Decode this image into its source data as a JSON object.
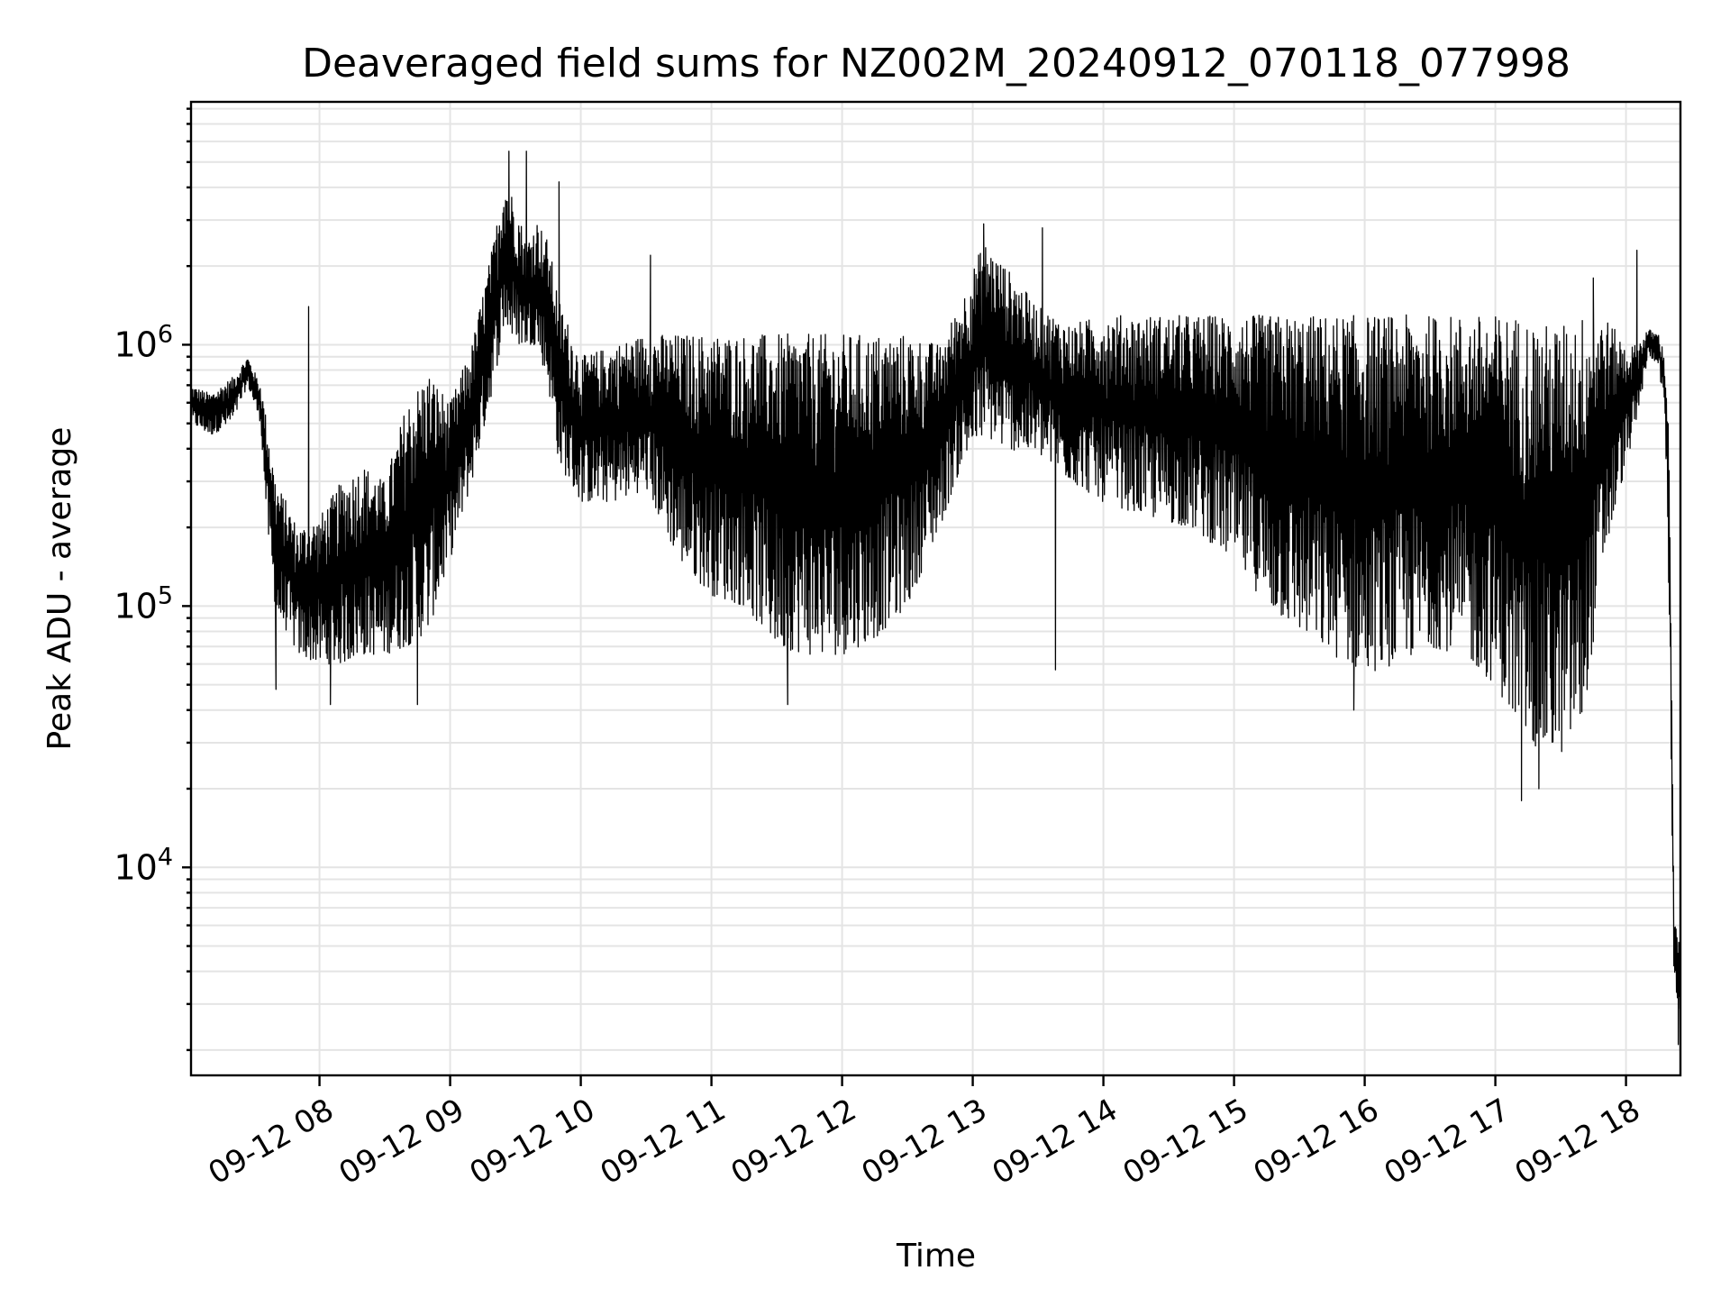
{
  "chart_data": {
    "type": "line",
    "title": "Deaveraged field sums for NZ002M_20240912_070118_077998",
    "xlabel": "Time",
    "ylabel": "Peak ADU - average",
    "yscale": "log",
    "ylim": [
      1600,
      8500000
    ],
    "xlim": [
      "2024-09-12 07:01",
      "2024-09-12 18:25"
    ],
    "grid": true,
    "legend": "none",
    "line_color": "#000000",
    "x_ticks": [
      "09-12 08",
      "09-12 09",
      "09-12 10",
      "09-12 11",
      "09-12 12",
      "09-12 13",
      "09-12 14",
      "09-12 15",
      "09-12 16",
      "09-12 17",
      "09-12 18"
    ],
    "y_ticks": [
      {
        "base": "10",
        "exp": "4",
        "value": 10000
      },
      {
        "base": "10",
        "exp": "5",
        "value": 100000
      },
      {
        "base": "10",
        "exp": "6",
        "value": 1000000
      }
    ],
    "series": [
      {
        "x": [
          "2024-09-12 07:01",
          "2024-09-12 07:10",
          "2024-09-12 07:20",
          "2024-09-12 07:27",
          "2024-09-12 07:33",
          "2024-09-12 07:36",
          "2024-09-12 07:40",
          "2024-09-12 07:45",
          "2024-09-12 07:50",
          "2024-09-12 08:00",
          "2024-09-12 08:10",
          "2024-09-12 08:20",
          "2024-09-12 08:30",
          "2024-09-12 08:40",
          "2024-09-12 08:50",
          "2024-09-12 09:00",
          "2024-09-12 09:10",
          "2024-09-12 09:20",
          "2024-09-12 09:25",
          "2024-09-12 09:30",
          "2024-09-12 09:35",
          "2024-09-12 09:40",
          "2024-09-12 09:45",
          "2024-09-12 09:50",
          "2024-09-12 10:00",
          "2024-09-12 10:15",
          "2024-09-12 10:30",
          "2024-09-12 10:45",
          "2024-09-12 11:00",
          "2024-09-12 11:15",
          "2024-09-12 11:30",
          "2024-09-12 11:45",
          "2024-09-12 12:00",
          "2024-09-12 12:15",
          "2024-09-12 12:30",
          "2024-09-12 12:45",
          "2024-09-12 12:55",
          "2024-09-12 13:05",
          "2024-09-12 13:15",
          "2024-09-12 13:30",
          "2024-09-12 13:45",
          "2024-09-12 14:00",
          "2024-09-12 14:20",
          "2024-09-12 14:40",
          "2024-09-12 15:00",
          "2024-09-12 15:15",
          "2024-09-12 15:30",
          "2024-09-12 15:45",
          "2024-09-12 16:00",
          "2024-09-12 16:15",
          "2024-09-12 16:30",
          "2024-09-12 16:45",
          "2024-09-12 17:00",
          "2024-09-12 17:10",
          "2024-09-12 17:20",
          "2024-09-12 17:30",
          "2024-09-12 17:40",
          "2024-09-12 17:50",
          "2024-09-12 18:00",
          "2024-09-12 18:05",
          "2024-09-12 18:10",
          "2024-09-12 18:15",
          "2024-09-12 18:18",
          "2024-09-12 18:20",
          "2024-09-12 18:22",
          "2024-09-12 18:25"
        ],
        "high": [
          700000,
          650000,
          750000,
          900000,
          700000,
          500000,
          300000,
          250000,
          200000,
          220000,
          300000,
          350000,
          300000,
          600000,
          800000,
          600000,
          1000000,
          2500000,
          4500000,
          3500000,
          2500000,
          3000000,
          2500000,
          1500000,
          900000,
          1000000,
          1100000,
          1100000,
          1100000,
          1100000,
          1100000,
          1100000,
          1100000,
          1100000,
          1100000,
          1000000,
          1500000,
          2500000,
          2000000,
          1400000,
          1200000,
          1300000,
          1300000,
          1300000,
          1300000,
          1300000,
          1300000,
          1300000,
          1300000,
          1300000,
          1300000,
          1300000,
          1300000,
          1300000,
          1200000,
          1200000,
          1300000,
          1300000,
          1000000,
          1000000,
          1150000,
          1100000,
          900000,
          400000,
          6500,
          5000
        ],
        "low": [
          500000,
          450000,
          500000,
          700000,
          500000,
          200000,
          90000,
          80000,
          65000,
          60000,
          60000,
          65000,
          65000,
          70000,
          80000,
          150000,
          300000,
          700000,
          1200000,
          1000000,
          1000000,
          1000000,
          700000,
          350000,
          250000,
          250000,
          280000,
          150000,
          110000,
          100000,
          70000,
          65000,
          65000,
          75000,
          100000,
          200000,
          350000,
          450000,
          400000,
          380000,
          300000,
          250000,
          220000,
          200000,
          150000,
          100000,
          80000,
          65000,
          55000,
          60000,
          70000,
          65000,
          50000,
          35000,
          28000,
          27000,
          35000,
          150000,
          350000,
          500000,
          900000,
          850000,
          500000,
          80000,
          3500,
          2800
        ],
        "min_spikes": [
          {
            "x": "2024-09-12 07:40",
            "y": 48000
          },
          {
            "x": "2024-09-12 08:05",
            "y": 42000
          },
          {
            "x": "2024-09-12 08:45",
            "y": 42000
          },
          {
            "x": "2024-09-12 11:35",
            "y": 42000
          },
          {
            "x": "2024-09-12 13:38",
            "y": 57000
          },
          {
            "x": "2024-09-12 15:55",
            "y": 40000
          },
          {
            "x": "2024-09-12 17:12",
            "y": 18000
          },
          {
            "x": "2024-09-12 17:20",
            "y": 20000
          },
          {
            "x": "2024-09-12 18:24",
            "y": 2100
          }
        ],
        "max_spikes": [
          {
            "x": "2024-09-12 07:55",
            "y": 1400000
          },
          {
            "x": "2024-09-12 09:27",
            "y": 5500000
          },
          {
            "x": "2024-09-12 09:35",
            "y": 5500000
          },
          {
            "x": "2024-09-12 09:50",
            "y": 4200000
          },
          {
            "x": "2024-09-12 10:32",
            "y": 2200000
          },
          {
            "x": "2024-09-12 13:05",
            "y": 2900000
          },
          {
            "x": "2024-09-12 13:32",
            "y": 2800000
          },
          {
            "x": "2024-09-12 17:45",
            "y": 1800000
          },
          {
            "x": "2024-09-12 18:05",
            "y": 2300000
          }
        ]
      }
    ]
  }
}
